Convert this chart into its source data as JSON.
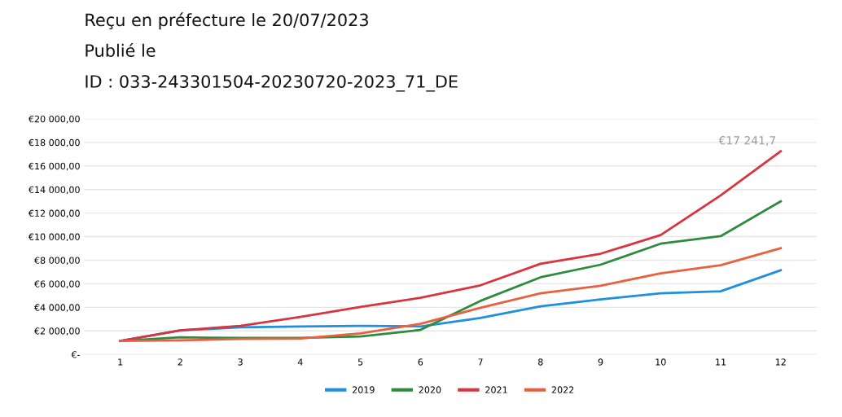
{
  "chart_data": {
    "type": "line",
    "annotations": [
      "Reçu en préfecture le 20/07/2023",
      "Publié le",
      "ID : 033-243301504-20230720-2023_71_DE"
    ],
    "categories": [
      "1",
      "2",
      "3",
      "4",
      "5",
      "6",
      "7",
      "8",
      "9",
      "10",
      "11",
      "12"
    ],
    "series": [
      {
        "name": "2019",
        "color": "#1f8fe0",
        "values": [
          1150,
          2040,
          2300,
          2380,
          2430,
          2380,
          3100,
          4080,
          4680,
          5190,
          5360,
          7150
        ]
      },
      {
        "name": "2020",
        "color": "#2e8b3e",
        "values": [
          1150,
          1450,
          1400,
          1400,
          1530,
          2080,
          4550,
          6550,
          7620,
          9400,
          10040,
          13000
        ]
      },
      {
        "name": "2021",
        "color": "#d9343f",
        "values": [
          1150,
          2040,
          2430,
          3190,
          4040,
          4810,
          5870,
          7700,
          8550,
          10130,
          13500,
          17241.7
        ],
        "value_labels": [
          null,
          null,
          null,
          null,
          null,
          null,
          null,
          null,
          null,
          null,
          null,
          "€17 241,7"
        ]
      },
      {
        "name": "2022",
        "color": "#e8603f",
        "values": [
          1150,
          1200,
          1320,
          1360,
          1790,
          2600,
          3960,
          5190,
          5830,
          6890,
          7570,
          9020
        ]
      }
    ],
    "ylim": [
      0,
      20000
    ],
    "yticks": [
      {
        "value": 0,
        "label": "€-"
      },
      {
        "value": 2000,
        "label": "€2 000,00"
      },
      {
        "value": 4000,
        "label": "€4 000,00"
      },
      {
        "value": 6000,
        "label": "€6 000,00"
      },
      {
        "value": 8000,
        "label": "€8 000,00"
      },
      {
        "value": 10000,
        "label": "€10 000,00"
      },
      {
        "value": 12000,
        "label": "€12 000,00"
      },
      {
        "value": 14000,
        "label": "€14 000,00"
      },
      {
        "value": 16000,
        "label": "€16 000,00"
      },
      {
        "value": 18000,
        "label": "€18 000,00"
      },
      {
        "value": 20000,
        "label": "€20 000,00"
      }
    ],
    "grid": "y",
    "legend": "bottom",
    "marker": "none",
    "line_style": "solid"
  }
}
